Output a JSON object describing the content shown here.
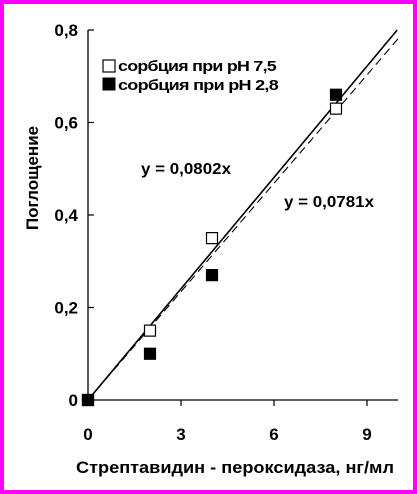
{
  "colors": {
    "frame": "#ff00ff",
    "axis": "#000000",
    "plot_background": "#ffffff",
    "series_open_fill": "#ffffff",
    "series_filled_fill": "#000000"
  },
  "chart_data": {
    "type": "scatter",
    "title": "",
    "xlabel": "Стрептавидин - пероксидаза, нг/мл",
    "ylabel": "Поглощение",
    "xlim": [
      0,
      10
    ],
    "ylim": [
      0,
      0.8
    ],
    "x_ticks": [
      {
        "value": 0,
        "label": "0"
      },
      {
        "value": 3,
        "label": "3"
      },
      {
        "value": 6,
        "label": "6"
      },
      {
        "value": 9,
        "label": "9"
      }
    ],
    "y_ticks": [
      {
        "value": 0,
        "label": "0"
      },
      {
        "value": 0.2,
        "label": "0,2"
      },
      {
        "value": 0.4,
        "label": "0,4"
      },
      {
        "value": 0.6,
        "label": "0,6"
      },
      {
        "value": 0.8,
        "label": "0,8"
      }
    ],
    "grid": false,
    "legend_position": "top-left",
    "series": [
      {
        "name": "сорбция при pH 7,5",
        "marker": "open-square",
        "points": [
          {
            "x": 0,
            "y": 0
          },
          {
            "x": 2,
            "y": 0.15
          },
          {
            "x": 4,
            "y": 0.35
          },
          {
            "x": 8,
            "y": 0.63
          }
        ],
        "trendline": {
          "slope": 0.0781,
          "style": "dashed",
          "equation": "y = 0,0781x"
        }
      },
      {
        "name": "сорбция при pH 2,8",
        "marker": "filled-square",
        "points": [
          {
            "x": 0,
            "y": 0
          },
          {
            "x": 2,
            "y": 0.1
          },
          {
            "x": 4,
            "y": 0.27
          },
          {
            "x": 8,
            "y": 0.66
          }
        ],
        "trendline": {
          "slope": 0.0802,
          "style": "solid",
          "equation": "y = 0,0802x"
        }
      }
    ]
  }
}
